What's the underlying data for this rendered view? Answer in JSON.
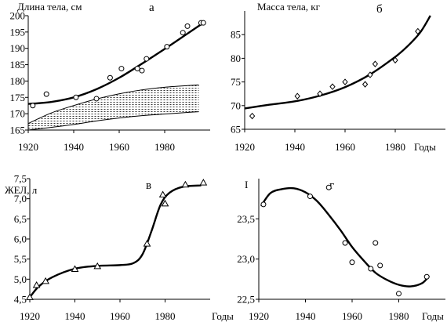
{
  "chart_data": [
    {
      "type": "scatter",
      "panel": "а",
      "ylabel": "Длина тела, см",
      "xlabel": "",
      "xlim": [
        1920,
        2000
      ],
      "ylim": [
        165,
        200
      ],
      "x_ticks": [
        1920,
        1940,
        1960,
        1980
      ],
      "y_ticks": [
        165,
        170,
        175,
        180,
        185,
        190,
        195,
        200
      ],
      "grid": false,
      "marker": "circle",
      "points": [
        {
          "x": 1922,
          "y": 172.5
        },
        {
          "x": 1928,
          "y": 176.0
        },
        {
          "x": 1941,
          "y": 175.0
        },
        {
          "x": 1950,
          "y": 174.6
        },
        {
          "x": 1956,
          "y": 181.0
        },
        {
          "x": 1961,
          "y": 183.8
        },
        {
          "x": 1968,
          "y": 183.8
        },
        {
          "x": 1970,
          "y": 183.2
        },
        {
          "x": 1972,
          "y": 186.8
        },
        {
          "x": 1981,
          "y": 190.5
        },
        {
          "x": 1988,
          "y": 194.8
        },
        {
          "x": 1990,
          "y": 196.8
        },
        {
          "x": 1996,
          "y": 197.8
        },
        {
          "x": 1997,
          "y": 197.8
        }
      ],
      "trend": [
        {
          "x": 1920,
          "y": 173.0
        },
        {
          "x": 1930,
          "y": 173.6
        },
        {
          "x": 1940,
          "y": 175.0
        },
        {
          "x": 1950,
          "y": 177.5
        },
        {
          "x": 1960,
          "y": 181.0
        },
        {
          "x": 1970,
          "y": 185.3
        },
        {
          "x": 1980,
          "y": 189.8
        },
        {
          "x": 1990,
          "y": 194.5
        },
        {
          "x": 1997,
          "y": 197.8
        }
      ],
      "band": {
        "x": [
          1920,
          1930,
          1940,
          1950,
          1960,
          1970,
          1980,
          1990,
          1995
        ],
        "upper": [
          167.0,
          170.2,
          172.5,
          174.5,
          176.1,
          177.3,
          178.1,
          178.6,
          178.8
        ],
        "lower": [
          165.0,
          165.8,
          166.7,
          167.8,
          168.7,
          169.4,
          169.9,
          170.4,
          170.6
        ]
      }
    },
    {
      "type": "scatter",
      "panel": "б",
      "ylabel": "Масса тела, кг",
      "xlabel": "Годы",
      "xlim": [
        1920,
        2000
      ],
      "ylim": [
        65,
        90
      ],
      "x_ticks": [
        1920,
        1940,
        1960,
        1980
      ],
      "y_ticks": [
        65,
        70,
        75,
        80,
        85
      ],
      "grid": false,
      "marker": "diamond",
      "points": [
        {
          "x": 1923,
          "y": 67.8
        },
        {
          "x": 1941,
          "y": 72.0
        },
        {
          "x": 1950,
          "y": 72.5
        },
        {
          "x": 1955,
          "y": 74.0
        },
        {
          "x": 1960,
          "y": 75.0
        },
        {
          "x": 1968,
          "y": 74.5
        },
        {
          "x": 1970,
          "y": 76.5
        },
        {
          "x": 1972,
          "y": 78.8
        },
        {
          "x": 1980,
          "y": 79.6
        },
        {
          "x": 1989,
          "y": 85.7
        }
      ],
      "trend": [
        {
          "x": 1920,
          "y": 69.4
        },
        {
          "x": 1930,
          "y": 70.2
        },
        {
          "x": 1940,
          "y": 70.9
        },
        {
          "x": 1950,
          "y": 72.1
        },
        {
          "x": 1960,
          "y": 73.9
        },
        {
          "x": 1970,
          "y": 76.6
        },
        {
          "x": 1980,
          "y": 80.3
        },
        {
          "x": 1985,
          "y": 82.6
        },
        {
          "x": 1990,
          "y": 85.5
        },
        {
          "x": 1994,
          "y": 89.0
        }
      ]
    },
    {
      "type": "scatter",
      "panel": "в",
      "ylabel": "ЖЕЛ, л",
      "xlabel": "Годы",
      "xlim": [
        1920,
        2000
      ],
      "ylim": [
        4.5,
        7.5
      ],
      "x_ticks": [
        1920,
        1940,
        1960,
        1980
      ],
      "y_ticks": [
        "4,5",
        "5,0",
        "5,5",
        "6,0",
        "6,5",
        "7,0",
        "7,5"
      ],
      "y_tick_values": [
        4.5,
        5.0,
        5.5,
        6.0,
        6.5,
        7.0,
        7.5
      ],
      "grid": false,
      "marker": "triangle",
      "points": [
        {
          "x": 1920,
          "y": 4.55
        },
        {
          "x": 1923,
          "y": 4.85
        },
        {
          "x": 1927,
          "y": 4.95
        },
        {
          "x": 1940,
          "y": 5.25
        },
        {
          "x": 1950,
          "y": 5.32
        },
        {
          "x": 1972,
          "y": 5.88
        },
        {
          "x": 1979,
          "y": 7.1
        },
        {
          "x": 1980,
          "y": 6.88
        },
        {
          "x": 1989,
          "y": 7.35
        },
        {
          "x": 1997,
          "y": 7.4
        }
      ],
      "trend": [
        {
          "x": 1920,
          "y": 4.55
        },
        {
          "x": 1924,
          "y": 4.82
        },
        {
          "x": 1930,
          "y": 5.05
        },
        {
          "x": 1940,
          "y": 5.26
        },
        {
          "x": 1950,
          "y": 5.33
        },
        {
          "x": 1960,
          "y": 5.35
        },
        {
          "x": 1966,
          "y": 5.4
        },
        {
          "x": 1970,
          "y": 5.62
        },
        {
          "x": 1974,
          "y": 6.2
        },
        {
          "x": 1978,
          "y": 6.85
        },
        {
          "x": 1982,
          "y": 7.15
        },
        {
          "x": 1988,
          "y": 7.3
        },
        {
          "x": 1996,
          "y": 7.33
        }
      ]
    },
    {
      "type": "scatter",
      "panel": "г",
      "ylabel": "I",
      "xlabel": "Годы",
      "xlim": [
        1920,
        2000
      ],
      "ylim": [
        22.5,
        24.0
      ],
      "x_ticks": [
        1920,
        1940,
        1960,
        1980
      ],
      "y_ticks": [
        "22,5",
        "23,0",
        "23,5"
      ],
      "y_tick_values": [
        22.5,
        23.0,
        23.5
      ],
      "grid": false,
      "marker": "circle",
      "points": [
        {
          "x": 1922,
          "y": 23.68
        },
        {
          "x": 1942,
          "y": 23.78
        },
        {
          "x": 1950,
          "y": 23.89
        },
        {
          "x": 1957,
          "y": 23.2
        },
        {
          "x": 1960,
          "y": 22.96
        },
        {
          "x": 1968,
          "y": 22.88
        },
        {
          "x": 1970,
          "y": 23.2
        },
        {
          "x": 1972,
          "y": 22.92
        },
        {
          "x": 1980,
          "y": 22.57
        },
        {
          "x": 1992,
          "y": 22.78
        }
      ],
      "trend": [
        {
          "x": 1921,
          "y": 23.66
        },
        {
          "x": 1925,
          "y": 23.82
        },
        {
          "x": 1930,
          "y": 23.87
        },
        {
          "x": 1935,
          "y": 23.88
        },
        {
          "x": 1940,
          "y": 23.83
        },
        {
          "x": 1945,
          "y": 23.72
        },
        {
          "x": 1950,
          "y": 23.55
        },
        {
          "x": 1955,
          "y": 23.36
        },
        {
          "x": 1960,
          "y": 23.15
        },
        {
          "x": 1965,
          "y": 22.98
        },
        {
          "x": 1970,
          "y": 22.83
        },
        {
          "x": 1975,
          "y": 22.74
        },
        {
          "x": 1980,
          "y": 22.68
        },
        {
          "x": 1985,
          "y": 22.66
        },
        {
          "x": 1990,
          "y": 22.7
        },
        {
          "x": 1993,
          "y": 22.79
        }
      ]
    }
  ]
}
